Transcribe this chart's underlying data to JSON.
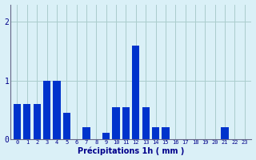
{
  "hours": [
    0,
    1,
    2,
    3,
    4,
    5,
    6,
    7,
    8,
    9,
    10,
    11,
    12,
    13,
    14,
    15,
    16,
    17,
    18,
    19,
    20,
    21,
    22,
    23
  ],
  "values": [
    0.6,
    0.6,
    0.6,
    1.0,
    1.0,
    0.45,
    0.0,
    0.2,
    0.0,
    0.1,
    0.55,
    0.55,
    1.6,
    0.55,
    0.2,
    0.2,
    0.0,
    0.0,
    0.0,
    0.0,
    0.0,
    0.2,
    0.0,
    0.0
  ],
  "bar_color": "#0033cc",
  "background_color": "#daf0f7",
  "grid_color": "#aacccc",
  "xlabel": "Précipitations 1h ( mm )",
  "xlabel_color": "#00008b",
  "tick_color": "#00008b",
  "ylabel_ticks": [
    0,
    1,
    2
  ],
  "ylim": [
    0,
    2.3
  ],
  "figwidth": 3.2,
  "figheight": 2.0,
  "dpi": 100
}
